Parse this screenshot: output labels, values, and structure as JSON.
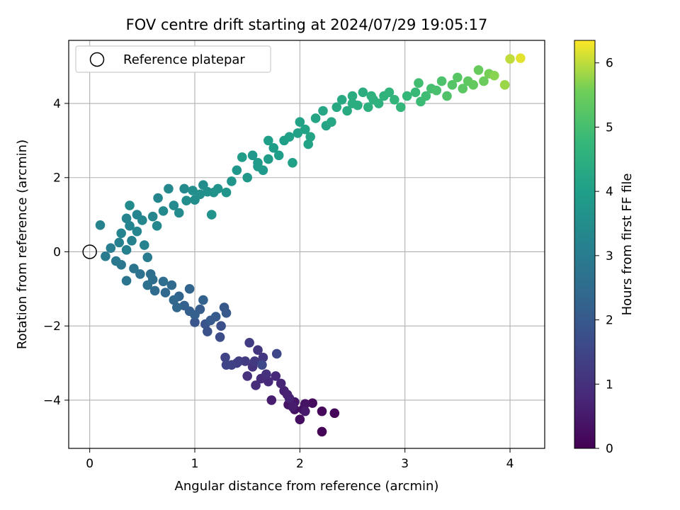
{
  "chart_data": {
    "type": "scatter",
    "title": "FOV centre drift starting at 2024/07/29 19:05:17",
    "xlabel": "Angular distance from reference (arcmin)",
    "ylabel": "Rotation from reference (arcmin)",
    "xlim": [
      -0.2,
      4.33
    ],
    "ylim": [
      -5.3,
      5.7
    ],
    "xticks": [
      0,
      1,
      2,
      3,
      4
    ],
    "yticks": [
      -4,
      -2,
      0,
      2,
      4
    ],
    "grid": true,
    "legend": {
      "position": "top-left",
      "entries": [
        "Reference platepar"
      ]
    },
    "reference_point": {
      "x": 0,
      "y": 0,
      "label": "Reference platepar"
    },
    "colorbar": {
      "label": "Hours from first FF file",
      "range": [
        0,
        6.35
      ],
      "ticks": [
        0,
        1,
        2,
        3,
        4,
        5,
        6
      ],
      "colormap": "viridis"
    },
    "series": [
      {
        "colored_by": "Hours from first FF file",
        "points": [
          {
            "x": 2.21,
            "y": -4.85,
            "c": 0.05
          },
          {
            "x": 2.33,
            "y": -4.35,
            "c": 0.1
          },
          {
            "x": 2.21,
            "y": -4.3,
            "c": 0.15
          },
          {
            "x": 2.12,
            "y": -4.08,
            "c": 0.2
          },
          {
            "x": 2.0,
            "y": -4.52,
            "c": 0.25
          },
          {
            "x": 2.03,
            "y": -4.25,
            "c": 0.3
          },
          {
            "x": 1.95,
            "y": -4.25,
            "c": 0.35
          },
          {
            "x": 1.89,
            "y": -4.12,
            "c": 0.4
          },
          {
            "x": 1.95,
            "y": -4.05,
            "c": 0.45
          },
          {
            "x": 2.05,
            "y": -4.3,
            "c": 0.5
          },
          {
            "x": 1.93,
            "y": -4.18,
            "c": 0.55
          },
          {
            "x": 1.73,
            "y": -4.0,
            "c": 0.6
          },
          {
            "x": 1.85,
            "y": -3.75,
            "c": 0.65
          },
          {
            "x": 1.88,
            "y": -3.85,
            "c": 0.7
          },
          {
            "x": 1.82,
            "y": -3.55,
            "c": 0.75
          },
          {
            "x": 1.77,
            "y": -3.35,
            "c": 0.8
          },
          {
            "x": 1.7,
            "y": -3.5,
            "c": 0.85
          },
          {
            "x": 1.63,
            "y": -3.42,
            "c": 0.9
          },
          {
            "x": 1.58,
            "y": -3.6,
            "c": 0.95
          },
          {
            "x": 1.5,
            "y": -3.35,
            "c": 1.0
          },
          {
            "x": 1.55,
            "y": -3.1,
            "c": 1.05
          },
          {
            "x": 1.6,
            "y": -2.65,
            "c": 1.1
          },
          {
            "x": 1.65,
            "y": -2.85,
            "c": 1.15
          },
          {
            "x": 1.57,
            "y": -2.95,
            "c": 1.2
          },
          {
            "x": 1.48,
            "y": -2.95,
            "c": 1.25
          },
          {
            "x": 1.52,
            "y": -2.45,
            "c": 1.3
          },
          {
            "x": 1.4,
            "y": -3.0,
            "c": 1.35
          },
          {
            "x": 1.35,
            "y": -3.05,
            "c": 1.4
          },
          {
            "x": 1.29,
            "y": -2.85,
            "c": 1.45
          },
          {
            "x": 1.3,
            "y": -3.05,
            "c": 1.5
          },
          {
            "x": 1.78,
            "y": -2.75,
            "c": 1.55
          },
          {
            "x": 1.64,
            "y": -3.05,
            "c": 1.6
          },
          {
            "x": 1.24,
            "y": -2.3,
            "c": 1.7
          },
          {
            "x": 1.25,
            "y": -2.0,
            "c": 1.75
          },
          {
            "x": 1.12,
            "y": -2.15,
            "c": 1.8
          },
          {
            "x": 1.1,
            "y": -1.95,
            "c": 1.85
          },
          {
            "x": 1.0,
            "y": -1.9,
            "c": 1.9
          },
          {
            "x": 1.28,
            "y": -1.5,
            "c": 1.95
          },
          {
            "x": 1.3,
            "y": -1.65,
            "c": 2.0
          },
          {
            "x": 1.2,
            "y": -1.75,
            "c": 2.05
          },
          {
            "x": 1.05,
            "y": -1.55,
            "c": 2.1
          },
          {
            "x": 0.95,
            "y": -1.6,
            "c": 2.15
          },
          {
            "x": 0.9,
            "y": -1.45,
            "c": 2.2
          },
          {
            "x": 1.08,
            "y": -1.3,
            "c": 2.25
          },
          {
            "x": 0.85,
            "y": -1.2,
            "c": 2.3
          },
          {
            "x": 0.83,
            "y": -1.5,
            "c": 2.35
          },
          {
            "x": 0.72,
            "y": -1.1,
            "c": 2.4
          },
          {
            "x": 0.78,
            "y": -0.9,
            "c": 2.45
          },
          {
            "x": 0.62,
            "y": -1.05,
            "c": 2.5
          },
          {
            "x": 0.7,
            "y": -0.8,
            "c": 2.55
          },
          {
            "x": 0.58,
            "y": -0.6,
            "c": 2.6
          },
          {
            "x": 0.55,
            "y": -0.9,
            "c": 2.65
          },
          {
            "x": 0.48,
            "y": -0.6,
            "c": 2.7
          },
          {
            "x": 0.42,
            "y": -0.45,
            "c": 2.75
          },
          {
            "x": 0.35,
            "y": -0.78,
            "c": 2.8
          },
          {
            "x": 0.3,
            "y": -0.35,
            "c": 2.85
          },
          {
            "x": 0.25,
            "y": -0.25,
            "c": 2.9
          },
          {
            "x": 0.55,
            "y": -0.15,
            "c": 2.95
          },
          {
            "x": 0.15,
            "y": -0.12,
            "c": 3.0
          },
          {
            "x": 0.2,
            "y": 0.1,
            "c": 3.05
          },
          {
            "x": 0.35,
            "y": 0.05,
            "c": 3.1
          },
          {
            "x": 0.28,
            "y": 0.25,
            "c": 3.12
          },
          {
            "x": 0.4,
            "y": 0.3,
            "c": 3.15
          },
          {
            "x": 0.52,
            "y": 0.18,
            "c": 3.18
          },
          {
            "x": 0.1,
            "y": 0.72,
            "c": 3.2
          },
          {
            "x": 0.3,
            "y": 0.5,
            "c": 3.22
          },
          {
            "x": 0.38,
            "y": 0.7,
            "c": 3.25
          },
          {
            "x": 0.45,
            "y": 0.55,
            "c": 3.28
          },
          {
            "x": 0.5,
            "y": 0.85,
            "c": 3.3
          },
          {
            "x": 0.6,
            "y": 0.95,
            "c": 3.33
          },
          {
            "x": 0.64,
            "y": 0.7,
            "c": 3.35
          },
          {
            "x": 0.7,
            "y": 1.1,
            "c": 3.38
          },
          {
            "x": 0.8,
            "y": 1.25,
            "c": 3.4
          },
          {
            "x": 0.38,
            "y": 1.25,
            "c": 3.42
          },
          {
            "x": 0.85,
            "y": 1.05,
            "c": 3.45
          },
          {
            "x": 0.92,
            "y": 1.38,
            "c": 3.48
          },
          {
            "x": 1.0,
            "y": 1.4,
            "c": 3.5
          },
          {
            "x": 0.98,
            "y": 1.65,
            "c": 3.53
          },
          {
            "x": 1.05,
            "y": 1.55,
            "c": 3.56
          },
          {
            "x": 1.12,
            "y": 1.62,
            "c": 3.6
          },
          {
            "x": 1.18,
            "y": 1.6,
            "c": 3.62
          },
          {
            "x": 1.22,
            "y": 1.7,
            "c": 3.65
          },
          {
            "x": 1.16,
            "y": 1.0,
            "c": 3.68
          },
          {
            "x": 1.3,
            "y": 1.6,
            "c": 3.7
          },
          {
            "x": 1.35,
            "y": 1.9,
            "c": 3.72
          },
          {
            "x": 1.4,
            "y": 2.2,
            "c": 3.75
          },
          {
            "x": 1.5,
            "y": 2.0,
            "c": 3.78
          },
          {
            "x": 1.55,
            "y": 2.6,
            "c": 3.8
          },
          {
            "x": 1.6,
            "y": 2.4,
            "c": 3.83
          },
          {
            "x": 1.65,
            "y": 2.2,
            "c": 3.86
          },
          {
            "x": 1.7,
            "y": 2.5,
            "c": 3.9
          },
          {
            "x": 1.75,
            "y": 2.8,
            "c": 3.93
          },
          {
            "x": 1.8,
            "y": 2.6,
            "c": 3.96
          },
          {
            "x": 1.85,
            "y": 3.0,
            "c": 4.0
          },
          {
            "x": 1.93,
            "y": 2.4,
            "c": 4.03
          },
          {
            "x": 1.98,
            "y": 3.2,
            "c": 4.06
          },
          {
            "x": 2.0,
            "y": 3.5,
            "c": 4.1
          },
          {
            "x": 2.05,
            "y": 3.3,
            "c": 4.13
          },
          {
            "x": 2.1,
            "y": 3.1,
            "c": 4.16
          },
          {
            "x": 2.15,
            "y": 3.6,
            "c": 4.2
          },
          {
            "x": 2.22,
            "y": 3.8,
            "c": 4.23
          },
          {
            "x": 2.3,
            "y": 3.5,
            "c": 4.26
          },
          {
            "x": 2.35,
            "y": 3.9,
            "c": 4.3
          },
          {
            "x": 2.4,
            "y": 4.1,
            "c": 4.33
          },
          {
            "x": 2.45,
            "y": 3.8,
            "c": 4.36
          },
          {
            "x": 2.5,
            "y": 4.2,
            "c": 4.4
          },
          {
            "x": 2.55,
            "y": 3.95,
            "c": 4.43
          },
          {
            "x": 2.6,
            "y": 4.3,
            "c": 4.46
          },
          {
            "x": 2.65,
            "y": 3.9,
            "c": 4.5
          },
          {
            "x": 2.7,
            "y": 4.1,
            "c": 4.53
          },
          {
            "x": 2.75,
            "y": 4.0,
            "c": 4.56
          },
          {
            "x": 2.8,
            "y": 4.2,
            "c": 4.6
          },
          {
            "x": 2.85,
            "y": 4.3,
            "c": 4.64
          },
          {
            "x": 2.9,
            "y": 4.1,
            "c": 4.68
          },
          {
            "x": 2.96,
            "y": 3.9,
            "c": 4.72
          },
          {
            "x": 3.02,
            "y": 4.2,
            "c": 4.76
          },
          {
            "x": 3.1,
            "y": 4.3,
            "c": 4.8
          },
          {
            "x": 3.15,
            "y": 4.05,
            "c": 4.85
          },
          {
            "x": 3.2,
            "y": 4.2,
            "c": 4.9
          },
          {
            "x": 3.13,
            "y": 4.55,
            "c": 4.95
          },
          {
            "x": 3.25,
            "y": 4.4,
            "c": 5.0
          },
          {
            "x": 3.3,
            "y": 4.35,
            "c": 5.05
          },
          {
            "x": 3.35,
            "y": 4.6,
            "c": 5.1
          },
          {
            "x": 3.4,
            "y": 4.2,
            "c": 5.15
          },
          {
            "x": 3.45,
            "y": 4.5,
            "c": 5.2
          },
          {
            "x": 3.5,
            "y": 4.7,
            "c": 5.25
          },
          {
            "x": 3.55,
            "y": 4.4,
            "c": 5.3
          },
          {
            "x": 3.6,
            "y": 4.6,
            "c": 5.35
          },
          {
            "x": 3.65,
            "y": 4.5,
            "c": 5.4
          },
          {
            "x": 3.7,
            "y": 4.9,
            "c": 5.45
          },
          {
            "x": 3.75,
            "y": 4.6,
            "c": 5.5
          },
          {
            "x": 3.8,
            "y": 4.8,
            "c": 5.6
          },
          {
            "x": 3.85,
            "y": 4.75,
            "c": 5.7
          },
          {
            "x": 3.95,
            "y": 4.5,
            "c": 5.8
          },
          {
            "x": 4.0,
            "y": 5.2,
            "c": 6.0
          },
          {
            "x": 4.1,
            "y": 5.22,
            "c": 6.2
          },
          {
            "x": 1.45,
            "y": 2.55,
            "c": 3.9
          },
          {
            "x": 1.6,
            "y": 2.3,
            "c": 3.88
          },
          {
            "x": 1.7,
            "y": 3.0,
            "c": 4.0
          },
          {
            "x": 1.9,
            "y": 3.1,
            "c": 4.05
          },
          {
            "x": 2.08,
            "y": 2.9,
            "c": 4.12
          },
          {
            "x": 2.25,
            "y": 3.4,
            "c": 4.18
          },
          {
            "x": 2.5,
            "y": 4.0,
            "c": 4.45
          },
          {
            "x": 2.68,
            "y": 4.2,
            "c": 4.55
          },
          {
            "x": 0.75,
            "y": 1.7,
            "c": 3.35
          },
          {
            "x": 0.65,
            "y": 1.45,
            "c": 3.32
          },
          {
            "x": 0.9,
            "y": 1.7,
            "c": 3.4
          },
          {
            "x": 1.08,
            "y": 1.8,
            "c": 3.5
          },
          {
            "x": 0.45,
            "y": 1.0,
            "c": 3.25
          },
          {
            "x": 0.35,
            "y": 0.9,
            "c": 3.22
          },
          {
            "x": 0.6,
            "y": -0.75,
            "c": 2.6
          },
          {
            "x": 0.8,
            "y": -1.3,
            "c": 2.35
          },
          {
            "x": 1.0,
            "y": -1.7,
            "c": 2.15
          },
          {
            "x": 1.15,
            "y": -1.85,
            "c": 2.05
          },
          {
            "x": 0.95,
            "y": -1.0,
            "c": 2.3
          },
          {
            "x": 1.42,
            "y": -2.95,
            "c": 1.3
          },
          {
            "x": 1.68,
            "y": -3.3,
            "c": 1.0
          },
          {
            "x": 1.9,
            "y": -3.95,
            "c": 0.7
          },
          {
            "x": 2.05,
            "y": -4.1,
            "c": 0.35
          }
        ]
      }
    ]
  }
}
